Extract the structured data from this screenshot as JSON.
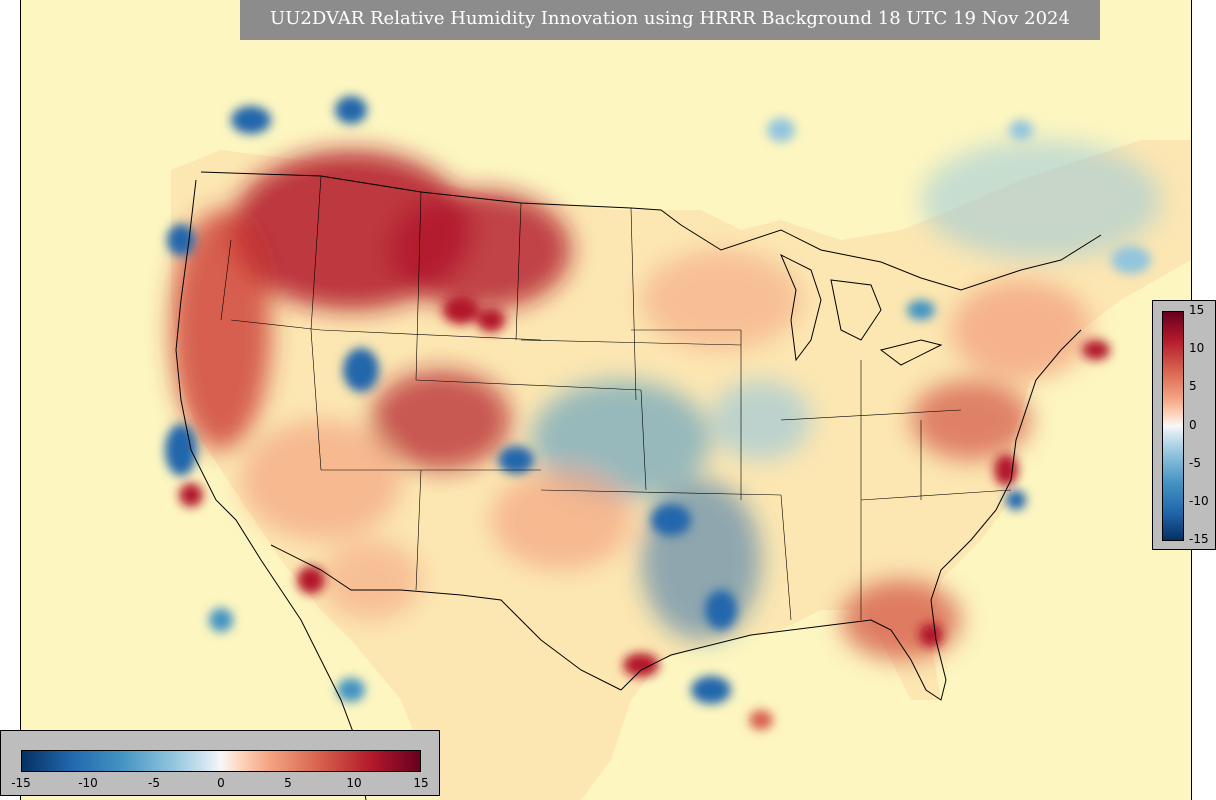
{
  "title": "UU2DVAR Relative Humidity Innovation using HRRR Background 18 UTC 19 Nov 2024",
  "colors": {
    "ocean_background": "#fdf6c1",
    "strong_positive": "#b2182b",
    "positive": "#f4a582",
    "neutral": "#f7f7f7",
    "negative": "#92c5de",
    "strong_negative": "#2166ac",
    "panel_gray": "#8c8c8c",
    "colorbar_panel": "#bdbdbd"
  },
  "colorbar_right": {
    "orientation": "vertical",
    "ticks": [
      "15",
      "10",
      "5",
      "0",
      "-5",
      "-10",
      "-15"
    ]
  },
  "colorbar_bottom": {
    "orientation": "horizontal",
    "ticks": [
      "-15",
      "-10",
      "-5",
      "0",
      "5",
      "10",
      "15"
    ]
  }
}
